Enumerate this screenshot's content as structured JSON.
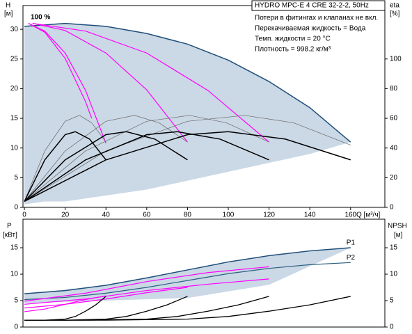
{
  "chart_data": [
    {
      "type": "line",
      "title": "HYDRO MPC-E 4 CRE 32-2-2, 50Hz",
      "notes": [
        "Потери в фитингах и клапанах не вкл.",
        "Перекачиваемая жидкость = Вода",
        "Темп. жидкости = 20 °C",
        "Плотность = 998.2 кг/м³"
      ],
      "ylabel": "H",
      "yunit": "[м]",
      "y2label": "eta",
      "y2unit": "[%]",
      "xlabel": "Q [м³/ч]",
      "annotation": "100 %",
      "xlim": [
        -0.7,
        176.8
      ],
      "xticks": [
        0,
        20,
        40,
        60,
        80,
        100,
        120,
        140,
        160
      ],
      "ylim": [
        0,
        34
      ],
      "yticks": [
        0,
        5,
        10,
        15,
        20,
        25,
        30
      ],
      "y2lim": [
        0,
        136
      ],
      "y2ticks": [
        0,
        20,
        40,
        60,
        80,
        100
      ],
      "areas": [
        {
          "color": "#cbd8e6",
          "x": [
            0,
            10,
            20,
            40,
            60,
            80,
            100,
            120,
            140,
            160
          ],
          "upper": [
            30.5,
            30.8,
            31,
            30.5,
            29.3,
            27.5,
            24.8,
            21.2,
            16.8,
            11
          ],
          "lower": [
            0.5,
            1,
            1,
            2,
            3,
            4.5,
            6,
            7.5,
            9,
            11
          ]
        }
      ],
      "series": [
        {
          "color": "#1f4e79",
          "width": 1.5,
          "x": [
            0,
            20,
            40,
            60,
            80,
            100,
            120,
            140,
            160
          ],
          "values": [
            30.5,
            31,
            30.5,
            29.3,
            27.5,
            24.8,
            21.2,
            16.8,
            11
          ]
        },
        {
          "color": "#ff00ff",
          "width": 1.2,
          "x": [
            2,
            10,
            20,
            30,
            33
          ],
          "values": [
            31,
            29.5,
            25.1,
            17.8,
            15
          ]
        },
        {
          "color": "#ff00ff",
          "width": 1.2,
          "x": [
            2,
            10,
            20,
            30,
            40
          ],
          "values": [
            31,
            29.7,
            26,
            19.7,
            10.8
          ]
        },
        {
          "color": "#ff00ff",
          "width": 1.2,
          "x": [
            4,
            20,
            40,
            60,
            80
          ],
          "values": [
            31,
            29.8,
            26,
            19.8,
            11
          ]
        },
        {
          "color": "#ff00ff",
          "width": 1.2,
          "x": [
            4,
            30,
            60,
            90,
            120
          ],
          "values": [
            31,
            29.7,
            26,
            19.7,
            11
          ]
        },
        {
          "color": "#666666",
          "width": 0.7,
          "axis": "y2",
          "x": [
            0,
            10,
            20,
            27,
            33,
            40
          ],
          "values": [
            4,
            38,
            58,
            62,
            57,
            44
          ]
        },
        {
          "color": "#666666",
          "width": 0.7,
          "axis": "y2",
          "x": [
            0,
            20,
            40,
            54,
            66,
            80
          ],
          "values": [
            4,
            38,
            58,
            62,
            57,
            44
          ]
        },
        {
          "color": "#666666",
          "width": 0.7,
          "axis": "y2",
          "x": [
            0,
            30,
            60,
            81,
            99,
            120
          ],
          "values": [
            4,
            38,
            58,
            62,
            57,
            44
          ]
        },
        {
          "color": "#666666",
          "width": 0.7,
          "axis": "y2",
          "x": [
            0,
            40,
            80,
            108,
            132,
            160
          ],
          "values": [
            4,
            38,
            58,
            62,
            57,
            42
          ]
        },
        {
          "color": "#000000",
          "width": 1.5,
          "axis": "y2",
          "x": [
            0,
            10,
            20,
            25,
            32,
            40
          ],
          "values": [
            4,
            32,
            49,
            51,
            46,
            32
          ]
        },
        {
          "color": "#000000",
          "width": 1.5,
          "axis": "y2",
          "x": [
            0,
            20,
            40,
            50,
            64,
            80
          ],
          "values": [
            4,
            32,
            49,
            51,
            46,
            32
          ]
        },
        {
          "color": "#000000",
          "width": 1.5,
          "axis": "y2",
          "x": [
            0,
            30,
            60,
            75,
            96,
            120
          ],
          "values": [
            4,
            32,
            49,
            51,
            46,
            32
          ]
        },
        {
          "color": "#000000",
          "width": 1.5,
          "axis": "y2",
          "x": [
            0,
            40,
            80,
            100,
            128,
            160
          ],
          "values": [
            4,
            32,
            49,
            51,
            46,
            32
          ]
        }
      ]
    },
    {
      "type": "line",
      "ylabel": "P",
      "yunit": "[кВт]",
      "y2label": "NPSH",
      "y2unit": "[м]",
      "xlim": [
        -0.7,
        176.8
      ],
      "ylim": [
        0,
        20.4
      ],
      "yticks": [
        0,
        5,
        10,
        15
      ],
      "y2lim": [
        0,
        20.4
      ],
      "y2ticks": [
        0,
        5,
        10,
        15
      ],
      "areas": [
        {
          "color": "#cbd8e6",
          "x": [
            0,
            40,
            80,
            120,
            160
          ],
          "upper": [
            6.3,
            7.9,
            10.8,
            13.5,
            15
          ],
          "lower": [
            4.5,
            5,
            5.5,
            8,
            15
          ]
        }
      ],
      "series": [
        {
          "name": "P1",
          "color": "#1f4e79",
          "width": 1.5,
          "x": [
            0,
            20,
            40,
            60,
            80,
            100,
            120,
            140,
            160
          ],
          "values": [
            6.3,
            6.9,
            7.9,
            9.3,
            10.8,
            12.3,
            13.5,
            14.4,
            15
          ]
        },
        {
          "name": "P2",
          "color": "#2b5f7f",
          "width": 1.2,
          "x": [
            0,
            20,
            40,
            60,
            80,
            100,
            120,
            140,
            160
          ],
          "values": [
            5.2,
            5.6,
            6.4,
            7.5,
            8.8,
            10.1,
            11.1,
            11.8,
            12.2
          ]
        },
        {
          "color": "#ff00ff",
          "width": 1.2,
          "x": [
            0,
            10,
            20,
            30,
            40
          ],
          "values": [
            2.9,
            3.4,
            4.3,
            5.2,
            5.9
          ]
        },
        {
          "color": "#ff00ff",
          "width": 1.2,
          "x": [
            0,
            20,
            40,
            60,
            80
          ],
          "values": [
            3.6,
            4.3,
            5.3,
            6.5,
            7.5
          ]
        },
        {
          "color": "#ff00ff",
          "width": 1.2,
          "x": [
            0,
            30,
            60,
            90,
            120
          ],
          "values": [
            4.3,
            5.3,
            6.9,
            8.1,
            9.1
          ]
        },
        {
          "color": "#ff00ff",
          "width": 1.2,
          "x": [
            0,
            30,
            60,
            90,
            120
          ],
          "values": [
            4.9,
            6.4,
            8.6,
            10.3,
            11.4
          ]
        },
        {
          "color": "#000000",
          "width": 1.3,
          "axis": "y2",
          "x": [
            0,
            10,
            20,
            25,
            30,
            35,
            40
          ],
          "values": [
            1.3,
            1.3,
            1.5,
            2,
            3,
            4.2,
            5.8
          ]
        },
        {
          "color": "#000000",
          "width": 1.3,
          "axis": "y2",
          "x": [
            0,
            20,
            40,
            50,
            60,
            70,
            80
          ],
          "values": [
            1.3,
            1.3,
            1.5,
            2,
            3,
            4.2,
            5.8
          ]
        },
        {
          "color": "#000000",
          "width": 1.3,
          "axis": "y2",
          "x": [
            0,
            30,
            60,
            75,
            90,
            105,
            120
          ],
          "values": [
            1.3,
            1.3,
            1.5,
            2,
            3,
            4.2,
            5.8
          ]
        },
        {
          "color": "#000000",
          "width": 1.3,
          "axis": "y2",
          "x": [
            0,
            40,
            80,
            100,
            120,
            140,
            160
          ],
          "values": [
            1.3,
            1.3,
            1.5,
            2,
            3,
            4.2,
            5.8
          ]
        }
      ]
    }
  ]
}
